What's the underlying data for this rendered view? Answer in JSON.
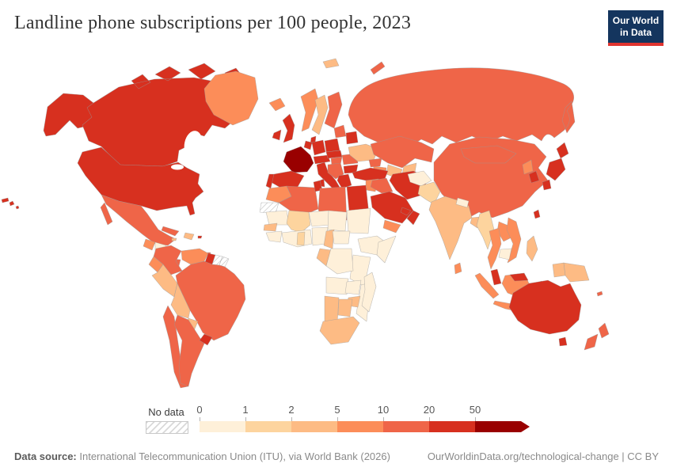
{
  "header": {
    "title": "Landline phone subscriptions per 100 people, 2023",
    "logo_line1": "Our World",
    "logo_line2": "in Data",
    "logo_bg": "#14355e",
    "logo_accent": "#e0342f"
  },
  "legend": {
    "no_data_label": "No data",
    "tick_labels": [
      "0",
      "1",
      "2",
      "5",
      "10",
      "20",
      "50"
    ]
  },
  "footer": {
    "source_label": "Data source:",
    "source_text": " International Telecommunication Union (ITU), via World Bank (2026)",
    "right_text": "OurWorldinData.org/technological-change | CC BY"
  },
  "chart_data": {
    "type": "heatmap",
    "subtype": "choropleth-world-map",
    "title": "Landline phone subscriptions per 100 people, 2023",
    "unit": "subscriptions per 100 people",
    "year": 2023,
    "legend_position": "bottom",
    "bins": [
      {
        "label": "0-1",
        "min": 0,
        "max": 1,
        "color": "#fef0d9"
      },
      {
        "label": "1-2",
        "min": 1,
        "max": 2,
        "color": "#fdd49e"
      },
      {
        "label": "2-5",
        "min": 2,
        "max": 5,
        "color": "#fdbb84"
      },
      {
        "label": "5-10",
        "min": 5,
        "max": 10,
        "color": "#fc8d59"
      },
      {
        "label": "10-20",
        "min": 10,
        "max": 20,
        "color": "#ef6548"
      },
      {
        "label": "20-50",
        "min": 20,
        "max": 50,
        "color": "#d7301f"
      },
      {
        "label": "50+",
        "min": 50,
        "max": 100,
        "color": "#990000"
      },
      {
        "label": "no-data",
        "color": "hatch"
      }
    ],
    "regions": [
      {
        "id": "united-states",
        "name": "United States",
        "bin": "20-50"
      },
      {
        "id": "canada",
        "name": "Canada",
        "bin": "20-50"
      },
      {
        "id": "greenland",
        "name": "Greenland",
        "bin": "5-10"
      },
      {
        "id": "mexico",
        "name": "Mexico",
        "bin": "10-20"
      },
      {
        "id": "guatemala",
        "name": "Guatemala & Belize",
        "bin": "5-10"
      },
      {
        "id": "honduras-nicaragua",
        "name": "Honduras & Nicaragua",
        "bin": "0-1"
      },
      {
        "id": "costa-rica-panama",
        "name": "Costa Rica & Panama",
        "bin": "10-20"
      },
      {
        "id": "cuba",
        "name": "Cuba",
        "bin": "10-20"
      },
      {
        "id": "hispaniola",
        "name": "Haiti & Dominican Republic",
        "bin": "2-5"
      },
      {
        "id": "jamaica",
        "name": "Jamaica",
        "bin": "2-5"
      },
      {
        "id": "puerto-rico",
        "name": "Puerto Rico",
        "bin": "20-50"
      },
      {
        "id": "trinidad",
        "name": "Trinidad and Tobago",
        "bin": "10-20"
      },
      {
        "id": "colombia",
        "name": "Colombia",
        "bin": "10-20"
      },
      {
        "id": "venezuela",
        "name": "Venezuela",
        "bin": "5-10"
      },
      {
        "id": "guyana",
        "name": "Guyana",
        "bin": "20-50"
      },
      {
        "id": "suriname",
        "name": "Suriname",
        "bin": "no-data"
      },
      {
        "id": "french-guiana",
        "name": "French Guiana",
        "bin": "no-data"
      },
      {
        "id": "ecuador",
        "name": "Ecuador",
        "bin": "5-10"
      },
      {
        "id": "peru",
        "name": "Peru",
        "bin": "2-5"
      },
      {
        "id": "brazil",
        "name": "Brazil",
        "bin": "10-20"
      },
      {
        "id": "bolivia",
        "name": "Bolivia",
        "bin": "2-5"
      },
      {
        "id": "paraguay",
        "name": "Paraguay",
        "bin": "2-5"
      },
      {
        "id": "uruguay",
        "name": "Uruguay",
        "bin": "20-50"
      },
      {
        "id": "argentina",
        "name": "Argentina",
        "bin": "10-20"
      },
      {
        "id": "chile",
        "name": "Chile",
        "bin": "10-20"
      },
      {
        "id": "iceland",
        "name": "Iceland",
        "bin": "5-10"
      },
      {
        "id": "united-kingdom",
        "name": "United Kingdom",
        "bin": "20-50"
      },
      {
        "id": "ireland",
        "name": "Ireland",
        "bin": "20-50"
      },
      {
        "id": "norway",
        "name": "Norway",
        "bin": "5-10"
      },
      {
        "id": "sweden",
        "name": "Sweden",
        "bin": "2-5"
      },
      {
        "id": "finland",
        "name": "Finland",
        "bin": "10-20"
      },
      {
        "id": "denmark",
        "name": "Denmark",
        "bin": "20-50"
      },
      {
        "id": "baltics",
        "name": "Baltic states",
        "bin": "10-20"
      },
      {
        "id": "belarus",
        "name": "Belarus",
        "bin": "20-50"
      },
      {
        "id": "poland",
        "name": "Poland",
        "bin": "20-50"
      },
      {
        "id": "germany",
        "name": "Germany",
        "bin": "20-50"
      },
      {
        "id": "benelux",
        "name": "Netherlands & Belgium",
        "bin": "20-50"
      },
      {
        "id": "france",
        "name": "France",
        "bin": "50+"
      },
      {
        "id": "spain",
        "name": "Spain",
        "bin": "20-50"
      },
      {
        "id": "portugal",
        "name": "Portugal",
        "bin": "20-50"
      },
      {
        "id": "switzerland-austria",
        "name": "Switzerland & Austria",
        "bin": "20-50"
      },
      {
        "id": "czech-slovakia",
        "name": "Czechia & Slovakia",
        "bin": "20-50"
      },
      {
        "id": "hungary",
        "name": "Hungary",
        "bin": "10-20"
      },
      {
        "id": "italy",
        "name": "Italy",
        "bin": "20-50"
      },
      {
        "id": "balkans",
        "name": "Western Balkans",
        "bin": "10-20"
      },
      {
        "id": "romania",
        "name": "Romania",
        "bin": "10-20"
      },
      {
        "id": "bulgaria",
        "name": "Bulgaria",
        "bin": "20-50"
      },
      {
        "id": "greece",
        "name": "Greece",
        "bin": "20-50"
      },
      {
        "id": "ukraine",
        "name": "Ukraine",
        "bin": "2-5"
      },
      {
        "id": "svalbard",
        "name": "Svalbard",
        "bin": "2-5"
      },
      {
        "id": "russia",
        "name": "Russia",
        "bin": "10-20"
      },
      {
        "id": "kazakhstan",
        "name": "Kazakhstan",
        "bin": "10-20"
      },
      {
        "id": "uzbekistan",
        "name": "Uzbekistan",
        "bin": "2-5"
      },
      {
        "id": "turkmenistan",
        "name": "Turkmenistan",
        "bin": "5-10"
      },
      {
        "id": "kyrgyzstan-tajikistan",
        "name": "Kyrgyzstan & Tajikistan",
        "bin": "2-5"
      },
      {
        "id": "caucasus",
        "name": "Caucasus states",
        "bin": "10-20"
      },
      {
        "id": "turkey",
        "name": "Turkey",
        "bin": "20-50"
      },
      {
        "id": "syria-jordan",
        "name": "Syria & Jordan",
        "bin": "5-10"
      },
      {
        "id": "israel",
        "name": "Israel",
        "bin": "20-50"
      },
      {
        "id": "iraq",
        "name": "Iraq",
        "bin": "10-20"
      },
      {
        "id": "iran",
        "name": "Iran",
        "bin": "20-50"
      },
      {
        "id": "saudi-arabia",
        "name": "Saudi Arabia",
        "bin": "20-50"
      },
      {
        "id": "yemen",
        "name": "Yemen",
        "bin": "5-10"
      },
      {
        "id": "oman",
        "name": "Oman",
        "bin": "20-50"
      },
      {
        "id": "uae-qatar",
        "name": "UAE & Qatar",
        "bin": "20-50"
      },
      {
        "id": "afghanistan",
        "name": "Afghanistan",
        "bin": "0-1"
      },
      {
        "id": "pakistan",
        "name": "Pakistan",
        "bin": "1-2"
      },
      {
        "id": "india",
        "name": "India",
        "bin": "2-5"
      },
      {
        "id": "nepal",
        "name": "Nepal",
        "bin": "0-1"
      },
      {
        "id": "bangladesh",
        "name": "Bangladesh",
        "bin": "2-5"
      },
      {
        "id": "sri-lanka",
        "name": "Sri Lanka",
        "bin": "5-10"
      },
      {
        "id": "myanmar",
        "name": "Myanmar",
        "bin": "1-2"
      },
      {
        "id": "thailand",
        "name": "Thailand",
        "bin": "5-10"
      },
      {
        "id": "laos",
        "name": "Laos",
        "bin": "5-10"
      },
      {
        "id": "vietnam",
        "name": "Vietnam",
        "bin": "5-10"
      },
      {
        "id": "cambodia",
        "name": "Cambodia",
        "bin": "0-1"
      },
      {
        "id": "china",
        "name": "China",
        "bin": "10-20"
      },
      {
        "id": "mongolia",
        "name": "Mongolia",
        "bin": "10-20"
      },
      {
        "id": "north-korea",
        "name": "North Korea",
        "bin": "5-10"
      },
      {
        "id": "south-korea",
        "name": "South Korea",
        "bin": "20-50"
      },
      {
        "id": "japan",
        "name": "Japan",
        "bin": "20-50"
      },
      {
        "id": "taiwan",
        "name": "Taiwan",
        "bin": "20-50"
      },
      {
        "id": "malaysia",
        "name": "Malaysia",
        "bin": "20-50"
      },
      {
        "id": "indonesia",
        "name": "Indonesia",
        "bin": "5-10"
      },
      {
        "id": "new-guinea-west",
        "name": "Indonesia (Papua)",
        "bin": "2-5"
      },
      {
        "id": "papua-new-guinea",
        "name": "Papua New Guinea",
        "bin": "2-5"
      },
      {
        "id": "philippines",
        "name": "Philippines",
        "bin": "2-5"
      },
      {
        "id": "australia",
        "name": "Australia",
        "bin": "20-50"
      },
      {
        "id": "new-zealand",
        "name": "New Zealand",
        "bin": "10-20"
      },
      {
        "id": "new-caledonia",
        "name": "New Caledonia",
        "bin": "10-20"
      },
      {
        "id": "morocco",
        "name": "Morocco",
        "bin": "5-10"
      },
      {
        "id": "western-sahara",
        "name": "Western Sahara",
        "bin": "no-data"
      },
      {
        "id": "algeria",
        "name": "Algeria",
        "bin": "10-20"
      },
      {
        "id": "tunisia",
        "name": "Tunisia",
        "bin": "20-50"
      },
      {
        "id": "libya",
        "name": "Libya",
        "bin": "10-20"
      },
      {
        "id": "egypt",
        "name": "Egypt",
        "bin": "20-50"
      },
      {
        "id": "mauritania",
        "name": "Mauritania",
        "bin": "0-1"
      },
      {
        "id": "mali",
        "name": "Mali",
        "bin": "1-2"
      },
      {
        "id": "niger",
        "name": "Niger",
        "bin": "0-1"
      },
      {
        "id": "chad",
        "name": "Chad",
        "bin": "0-1"
      },
      {
        "id": "sudan",
        "name": "Sudan",
        "bin": "0-1"
      },
      {
        "id": "senegal",
        "name": "Senegal",
        "bin": "2-5"
      },
      {
        "id": "guinea",
        "name": "Guinea & Sierra Leone",
        "bin": "0-1"
      },
      {
        "id": "west-coast",
        "name": "Côte d'Ivoire & coastal West Africa",
        "bin": "0-1"
      },
      {
        "id": "ghana",
        "name": "Ghana",
        "bin": "1-2"
      },
      {
        "id": "nigeria",
        "name": "Nigeria",
        "bin": "0-1"
      },
      {
        "id": "cameroon",
        "name": "Cameroon",
        "bin": "2-5"
      },
      {
        "id": "central-african-republic",
        "name": "Central African Republic",
        "bin": "0-1"
      },
      {
        "id": "ethiopia",
        "name": "Ethiopia",
        "bin": "0-1"
      },
      {
        "id": "somalia",
        "name": "Somalia",
        "bin": "0-1"
      },
      {
        "id": "kenya-tanzania",
        "name": "Kenya, Uganda & Tanzania",
        "bin": "0-1"
      },
      {
        "id": "gabon-congo",
        "name": "Gabon & Congo",
        "bin": "2-5"
      },
      {
        "id": "drc",
        "name": "Democratic Republic of Congo",
        "bin": "0-1"
      },
      {
        "id": "angola",
        "name": "Angola",
        "bin": "0-1"
      },
      {
        "id": "zambia",
        "name": "Zambia",
        "bin": "0-1"
      },
      {
        "id": "mozambique",
        "name": "Mozambique",
        "bin": "0-1"
      },
      {
        "id": "zimbabwe",
        "name": "Zimbabwe",
        "bin": "2-5"
      },
      {
        "id": "namibia",
        "name": "Namibia",
        "bin": "2-5"
      },
      {
        "id": "botswana",
        "name": "Botswana",
        "bin": "2-5"
      },
      {
        "id": "south-africa",
        "name": "South Africa",
        "bin": "2-5"
      },
      {
        "id": "madagascar",
        "name": "Madagascar",
        "bin": "0-1"
      }
    ]
  }
}
